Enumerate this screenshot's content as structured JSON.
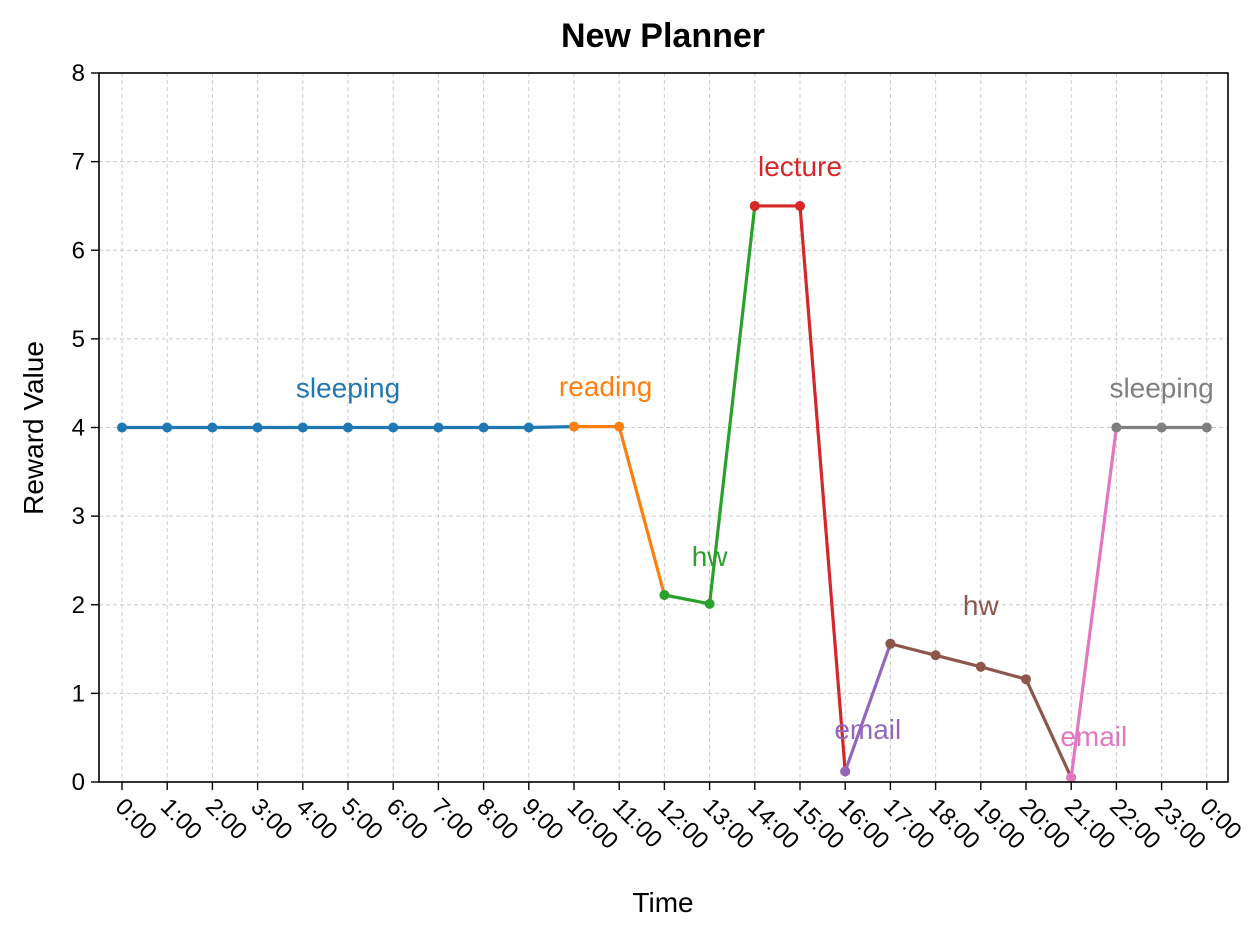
{
  "chart_data": {
    "type": "line",
    "title": "New Planner",
    "xlabel": "Time",
    "ylabel": "Reward Value",
    "ylim": [
      0,
      8
    ],
    "y_ticks": [
      "0",
      "1",
      "2",
      "3",
      "4",
      "5",
      "6",
      "7",
      "8"
    ],
    "x_tick_labels": [
      "0:00",
      "1:00",
      "2:00",
      "3:00",
      "4:00",
      "5:00",
      "6:00",
      "7:00",
      "8:00",
      "9:00",
      "10:00",
      "11:00",
      "12:00",
      "13:00",
      "14:00",
      "15:00",
      "16:00",
      "17:00",
      "18:00",
      "19:00",
      "20:00",
      "21:00",
      "22:00",
      "23:00",
      "0:00"
    ],
    "grid": true,
    "legend": "none",
    "segments": [
      {
        "label": "sleeping",
        "color": "#1f77b4",
        "x": [
          0,
          1,
          2,
          3,
          4,
          5,
          6,
          7,
          8,
          9,
          10
        ],
        "y": [
          4,
          4,
          4,
          4,
          4,
          4,
          4,
          4,
          4,
          4,
          4.01
        ],
        "label_x": 5,
        "label_y": 4.45
      },
      {
        "label": "reading",
        "color": "#ff7f0e",
        "x": [
          10,
          11,
          12
        ],
        "y": [
          4.01,
          4.01,
          2.11
        ],
        "label_x": 10.7,
        "label_y": 4.47
      },
      {
        "label": "hw",
        "color": "#2ca02c",
        "x": [
          12,
          13,
          14
        ],
        "y": [
          2.11,
          2.01,
          6.5
        ],
        "label_x": 13,
        "label_y": 2.55
      },
      {
        "label": "lecture",
        "color": "#d62728",
        "x": [
          14,
          15,
          16
        ],
        "y": [
          6.5,
          6.5,
          0.12
        ],
        "label_x": 15,
        "label_y": 6.95
      },
      {
        "label": "email",
        "color": "#9467bd",
        "x": [
          16,
          17
        ],
        "y": [
          0.12,
          1.56
        ],
        "label_x": 16.5,
        "label_y": 0.6
      },
      {
        "label": "hw",
        "color": "#8c564b",
        "x": [
          17,
          18,
          19,
          20,
          21
        ],
        "y": [
          1.56,
          1.43,
          1.3,
          1.16,
          0.05
        ],
        "label_x": 19,
        "label_y": 2.0
      },
      {
        "label": "email",
        "color": "#e377c2",
        "x": [
          21,
          22
        ],
        "y": [
          0.05,
          4
        ],
        "label_x": 21.5,
        "label_y": 0.52
      },
      {
        "label": "sleeping",
        "color": "#7f7f7f",
        "x": [
          22,
          23,
          24
        ],
        "y": [
          4,
          4,
          4
        ],
        "label_x": 23,
        "label_y": 4.45
      }
    ]
  }
}
